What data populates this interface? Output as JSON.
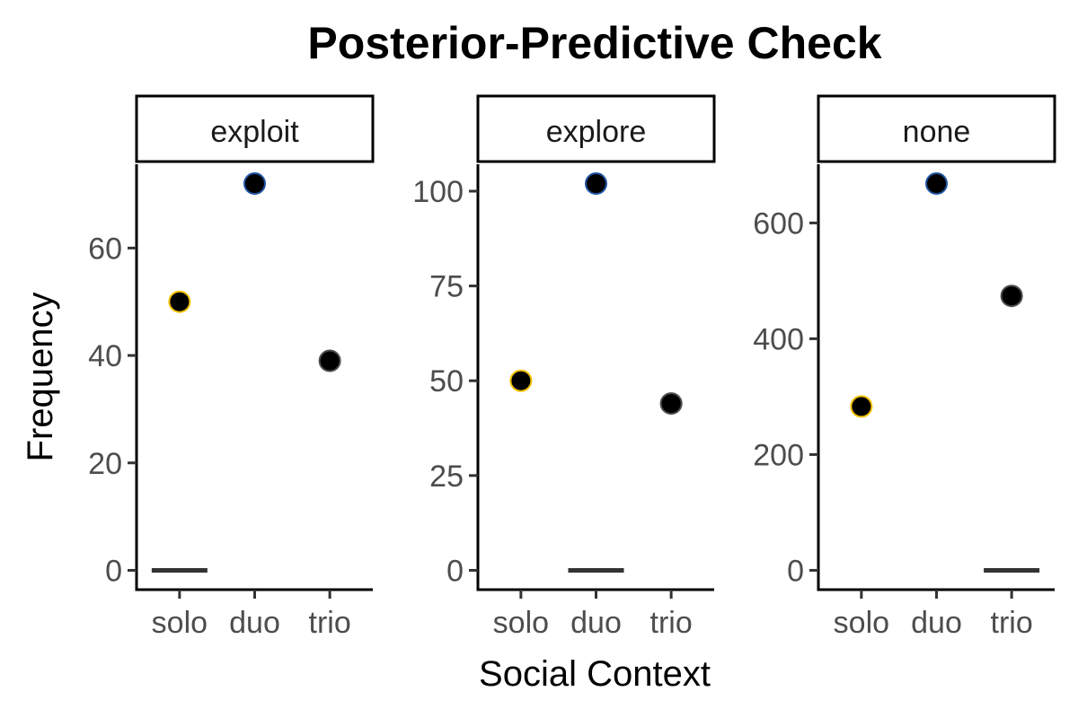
{
  "chart_data": {
    "type": "scatter",
    "title": "Posterior-Predictive Check",
    "xlabel": "Social Context",
    "ylabel": "Frequency",
    "categories": [
      "solo",
      "duo",
      "trio"
    ],
    "point_outline_colors": {
      "solo": "#F2C200",
      "duo": "#2255A4",
      "trio": "#4d4d4d"
    },
    "point_fill_color": "#000000",
    "segment_color": "#333333",
    "grid": false,
    "legend": "none",
    "panels": [
      {
        "facet": "exploit",
        "ylim": [
          -3.6,
          75.6
        ],
        "yticks": [
          0,
          20,
          40,
          60
        ],
        "points": [
          {
            "x": "solo",
            "y": 50
          },
          {
            "x": "duo",
            "y": 72
          },
          {
            "x": "trio",
            "y": 39
          }
        ],
        "segments": [
          {
            "x": "solo",
            "y": 0
          }
        ]
      },
      {
        "facet": "explore",
        "ylim": [
          -5.1,
          107.1
        ],
        "yticks": [
          0,
          25,
          50,
          75,
          100
        ],
        "points": [
          {
            "x": "solo",
            "y": 50
          },
          {
            "x": "duo",
            "y": 102
          },
          {
            "x": "trio",
            "y": 44
          }
        ],
        "segments": [
          {
            "x": "duo",
            "y": 0
          }
        ]
      },
      {
        "facet": "none",
        "ylim": [
          -33.4,
          701.4
        ],
        "yticks": [
          0,
          200,
          400,
          600
        ],
        "points": [
          {
            "x": "solo",
            "y": 283
          },
          {
            "x": "duo",
            "y": 668
          },
          {
            "x": "trio",
            "y": 474
          }
        ],
        "segments": [
          {
            "x": "trio",
            "y": 0
          }
        ]
      }
    ]
  }
}
